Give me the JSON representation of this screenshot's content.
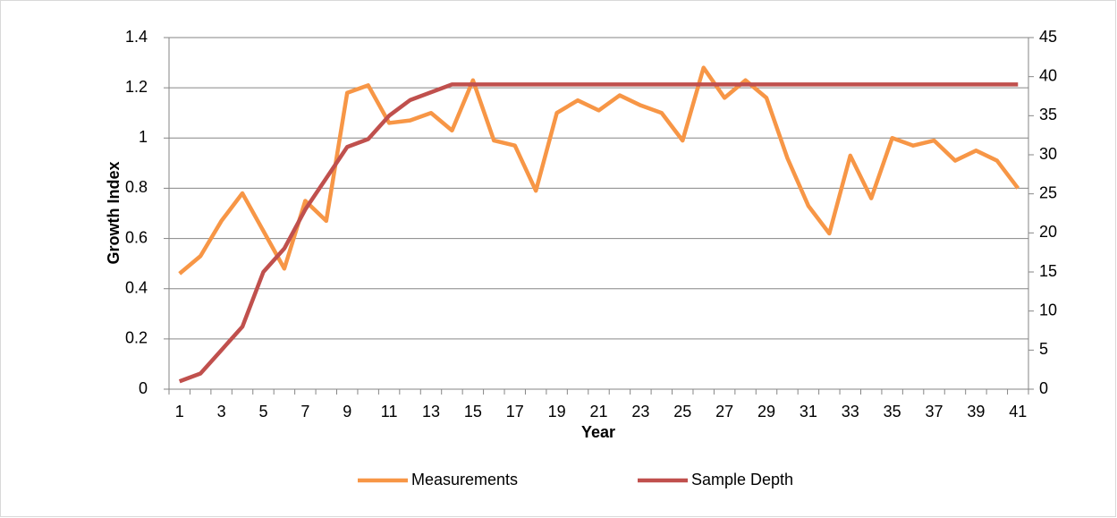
{
  "chart_data": {
    "type": "line",
    "x_label": "Year",
    "y_label": "Growth Index",
    "categories": [
      "1",
      null,
      "3",
      null,
      "5",
      null,
      "7",
      null,
      "9",
      null,
      "11",
      null,
      "13",
      null,
      "15",
      null,
      "17",
      null,
      "19",
      null,
      "21",
      null,
      "23",
      null,
      "25",
      null,
      "27",
      null,
      "29",
      null,
      "31",
      null,
      "33",
      null,
      "35",
      null,
      "37",
      null,
      "39",
      null,
      "41"
    ],
    "series": [
      {
        "name": "Measurements",
        "color": "#f79646",
        "values": [
          0.46,
          0.53,
          0.67,
          0.78,
          0.63,
          0.48,
          0.75,
          0.67,
          1.18,
          1.21,
          1.06,
          1.07,
          1.1,
          1.03,
          1.23,
          0.99,
          0.97,
          0.79,
          1.1,
          1.15,
          1.11,
          1.17,
          1.13,
          1.1,
          0.99,
          1.28,
          1.16,
          1.23,
          1.16,
          0.92,
          0.73,
          0.62,
          0.93,
          0.76,
          1.0,
          0.97,
          0.99,
          0.91,
          0.95,
          0.91,
          0.8
        ]
      },
      {
        "name": "Sample Depth",
        "color": "#c0504d",
        "axis": "y2",
        "values": [
          1,
          2,
          5,
          8,
          15,
          18,
          23,
          27,
          31,
          32,
          35,
          37,
          38,
          39,
          39,
          39,
          39,
          39,
          39,
          39,
          39,
          39,
          39,
          39,
          39,
          39,
          39,
          39,
          39,
          39,
          39,
          39,
          39,
          39,
          39,
          39,
          39,
          39,
          39,
          39,
          39
        ]
      }
    ],
    "ylim": [
      0,
      1.4
    ],
    "yticks": [
      0,
      0.2,
      0.4,
      0.6,
      0.8,
      1,
      1.2,
      1.4
    ],
    "y2lim": [
      0,
      45
    ],
    "y2ticks": [
      0,
      5,
      10,
      15,
      20,
      25,
      30,
      35,
      40,
      45
    ],
    "grid": true,
    "legend": "bottom"
  }
}
